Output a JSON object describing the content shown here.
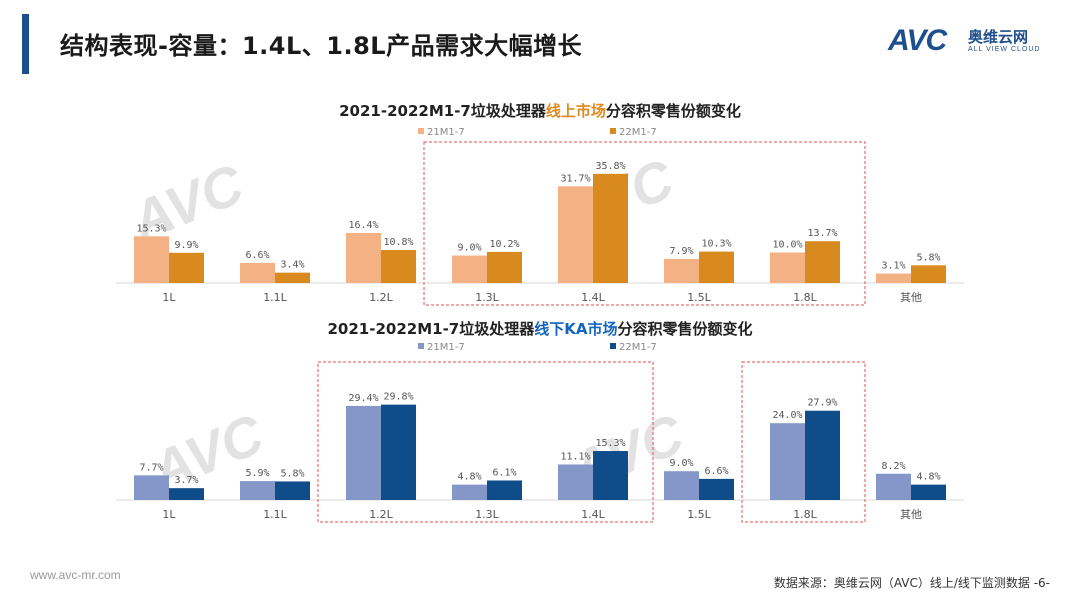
{
  "header": {
    "title": "结构表现-容量：1.4L、1.8L产品需求大幅增长",
    "logo_brand": "AVC",
    "logo_cn": "奥维云网",
    "logo_en": "ALL VIEW CLOUD"
  },
  "colors": {
    "accent_bar": "#1f4e8c",
    "online_21": "#f4b183",
    "online_22": "#d98a1e",
    "offline_21": "#8497c8",
    "offline_22": "#0f4c8a",
    "highlight_box": "#e05050"
  },
  "chart_data": [
    {
      "type": "bar",
      "title_parts": [
        "2021-2022M1-7垃圾处理器",
        "线上市场",
        "分容积零售份额变化"
      ],
      "categories": [
        "1L",
        "1.1L",
        "1.2L",
        "1.3L",
        "1.4L",
        "1.5L",
        "1.8L",
        "其他"
      ],
      "series": [
        {
          "name": "21M1-7",
          "values": [
            15.3,
            6.6,
            16.4,
            9.0,
            31.7,
            7.9,
            10.0,
            3.1
          ],
          "labels": [
            "15.3%",
            "6.6%",
            "16.4%",
            "9.0%",
            "31.7%",
            "7.9%",
            "10.0%",
            "3.1%"
          ]
        },
        {
          "name": "22M1-7",
          "values": [
            9.9,
            3.4,
            10.8,
            10.2,
            35.8,
            10.3,
            13.7,
            5.8
          ],
          "labels": [
            "9.9%",
            "3.4%",
            "10.8%",
            "10.2%",
            "35.8%",
            "10.3%",
            "13.7%",
            "5.8%"
          ]
        }
      ],
      "highlight_groups": [
        [
          3,
          6
        ]
      ],
      "legend_position": "top"
    },
    {
      "type": "bar",
      "title_parts": [
        "2021-2022M1-7垃圾处理器",
        "线下KA市场",
        "分容积零售份额变化"
      ],
      "categories": [
        "1L",
        "1.1L",
        "1.2L",
        "1.3L",
        "1.4L",
        "1.5L",
        "1.8L",
        "其他"
      ],
      "series": [
        {
          "name": "21M1-7",
          "values": [
            7.7,
            5.9,
            29.4,
            4.8,
            11.1,
            9.0,
            24.0,
            8.2
          ],
          "labels": [
            "7.7%",
            "5.9%",
            "29.4%",
            "4.8%",
            "11.1%",
            "9.0%",
            "24.0%",
            "8.2%"
          ]
        },
        {
          "name": "22M1-7",
          "values": [
            3.7,
            5.8,
            29.8,
            6.1,
            15.3,
            6.6,
            27.9,
            4.8
          ],
          "labels": [
            "3.7%",
            "5.8%",
            "29.8%",
            "6.1%",
            "15.3%",
            "6.6%",
            "27.9%",
            "4.8%"
          ]
        }
      ],
      "highlight_groups": [
        [
          2,
          4
        ],
        [
          6,
          6
        ]
      ],
      "legend_position": "top"
    }
  ],
  "footer": {
    "url": "www.avc-mr.com",
    "source": "数据来源：奥维云网（AVC）线上/线下监测数据 -6-"
  }
}
